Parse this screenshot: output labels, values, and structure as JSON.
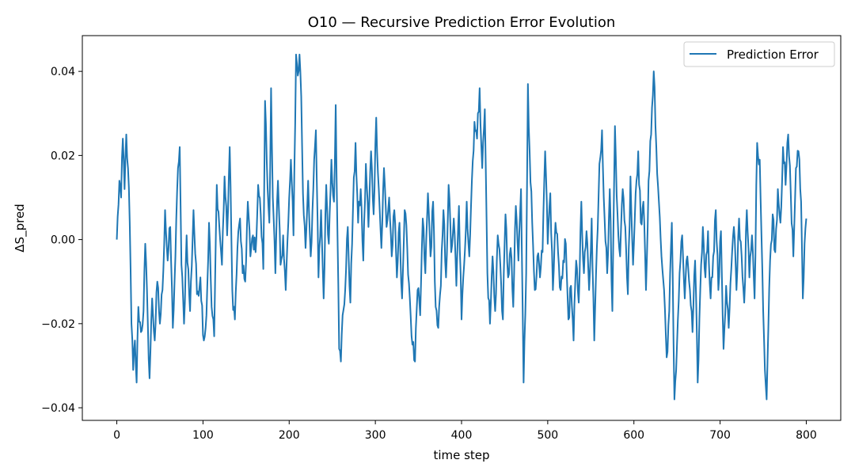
{
  "chart_data": {
    "type": "line",
    "title": "O10 — Recursive Prediction Error Evolution",
    "xlabel": "time step",
    "ylabel": "ΔS_pred",
    "xlim": [
      -40,
      840
    ],
    "ylim": [
      -0.043,
      0.0485
    ],
    "x_ticks": [
      0,
      100,
      200,
      300,
      400,
      500,
      600,
      700,
      800
    ],
    "x_tick_labels": [
      "0",
      "100",
      "200",
      "300",
      "400",
      "500",
      "600",
      "700",
      "800"
    ],
    "y_ticks": [
      -0.04,
      -0.02,
      0.0,
      0.02,
      0.04
    ],
    "y_tick_labels": [
      "−0.04",
      "−0.02",
      "0.00",
      "0.02",
      "0.04"
    ],
    "grid": false,
    "legend_position": "top-right",
    "series": [
      {
        "name": "Prediction Error",
        "color": "#1f77b4",
        "x_start": 0,
        "x_step": 1,
        "anchors": [
          [
            0,
            0.0
          ],
          [
            3,
            0.014
          ],
          [
            5,
            0.01
          ],
          [
            7,
            0.024
          ],
          [
            9,
            0.012
          ],
          [
            11,
            0.025
          ],
          [
            13,
            0.017
          ],
          [
            15,
            0.004
          ],
          [
            17,
            -0.02
          ],
          [
            19,
            -0.031
          ],
          [
            21,
            -0.024
          ],
          [
            23,
            -0.034
          ],
          [
            25,
            -0.016
          ],
          [
            28,
            -0.022
          ],
          [
            31,
            -0.017
          ],
          [
            33,
            -0.001
          ],
          [
            36,
            -0.02
          ],
          [
            38,
            -0.033
          ],
          [
            41,
            -0.014
          ],
          [
            44,
            -0.024
          ],
          [
            47,
            -0.01
          ],
          [
            50,
            -0.02
          ],
          [
            53,
            -0.012
          ],
          [
            56,
            0.007
          ],
          [
            59,
            -0.005
          ],
          [
            62,
            0.003
          ],
          [
            65,
            -0.021
          ],
          [
            68,
            -0.004
          ],
          [
            71,
            0.017
          ],
          [
            73,
            0.022
          ],
          [
            75,
            -0.006
          ],
          [
            78,
            -0.02
          ],
          [
            81,
            0.001
          ],
          [
            85,
            -0.017
          ],
          [
            89,
            0.007
          ],
          [
            93,
            -0.013
          ],
          [
            97,
            -0.009
          ],
          [
            101,
            -0.024
          ],
          [
            104,
            -0.018
          ],
          [
            107,
            0.004
          ],
          [
            110,
            -0.016
          ],
          [
            113,
            -0.023
          ],
          [
            116,
            0.013
          ],
          [
            119,
            0.003
          ],
          [
            122,
            -0.006
          ],
          [
            125,
            0.015
          ],
          [
            128,
            0.001
          ],
          [
            131,
            0.022
          ],
          [
            134,
            -0.012
          ],
          [
            137,
            -0.019
          ],
          [
            140,
            -0.002
          ],
          [
            143,
            0.005
          ],
          [
            146,
            -0.008
          ],
          [
            149,
            -0.01
          ],
          [
            152,
            0.009
          ],
          [
            155,
            -0.004
          ],
          [
            158,
            0.001
          ],
          [
            161,
            -0.003
          ],
          [
            164,
            0.013
          ],
          [
            167,
            0.006
          ],
          [
            170,
            -0.007
          ],
          [
            172,
            0.033
          ],
          [
            175,
            0.012
          ],
          [
            177,
            0.004
          ],
          [
            179,
            0.036
          ],
          [
            181,
            0.01
          ],
          [
            184,
            -0.008
          ],
          [
            187,
            0.014
          ],
          [
            190,
            -0.006
          ],
          [
            193,
            0.001
          ],
          [
            196,
            -0.012
          ],
          [
            199,
            0.004
          ],
          [
            202,
            0.019
          ],
          [
            205,
            0.001
          ],
          [
            208,
            0.044
          ],
          [
            210,
            0.039
          ],
          [
            212,
            0.044
          ],
          [
            214,
            0.034
          ],
          [
            216,
            0.011
          ],
          [
            219,
            -0.002
          ],
          [
            222,
            0.014
          ],
          [
            225,
            -0.004
          ],
          [
            228,
            0.012
          ],
          [
            231,
            0.026
          ],
          [
            234,
            -0.009
          ],
          [
            237,
            0.007
          ],
          [
            240,
            -0.014
          ],
          [
            243,
            0.013
          ],
          [
            246,
            -0.001
          ],
          [
            249,
            0.019
          ],
          [
            252,
            0.009
          ],
          [
            254,
            0.032
          ],
          [
            256,
            0.002
          ],
          [
            258,
            -0.026
          ],
          [
            260,
            -0.029
          ],
          [
            262,
            -0.018
          ],
          [
            265,
            -0.012
          ],
          [
            268,
            0.003
          ],
          [
            271,
            -0.015
          ],
          [
            274,
            0.007
          ],
          [
            277,
            0.023
          ],
          [
            280,
            0.004
          ],
          [
            283,
            0.012
          ],
          [
            286,
            -0.005
          ],
          [
            289,
            0.018
          ],
          [
            292,
            0.003
          ],
          [
            295,
            0.021
          ],
          [
            298,
            0.006
          ],
          [
            301,
            0.029
          ],
          [
            304,
            0.012
          ],
          [
            307,
            -0.002
          ],
          [
            310,
            0.017
          ],
          [
            313,
            0.003
          ],
          [
            316,
            0.01
          ],
          [
            319,
            -0.004
          ],
          [
            322,
            0.007
          ],
          [
            325,
            -0.009
          ],
          [
            328,
            0.004
          ],
          [
            331,
            -0.014
          ],
          [
            334,
            0.007
          ],
          [
            337,
            -0.002
          ],
          [
            340,
            -0.014
          ],
          [
            343,
            -0.025
          ],
          [
            346,
            -0.029
          ],
          [
            349,
            -0.012
          ],
          [
            352,
            -0.018
          ],
          [
            355,
            0.005
          ],
          [
            358,
            -0.008
          ],
          [
            361,
            0.011
          ],
          [
            364,
            -0.004
          ],
          [
            367,
            0.009
          ],
          [
            370,
            -0.016
          ],
          [
            373,
            -0.021
          ],
          [
            376,
            -0.011
          ],
          [
            379,
            0.007
          ],
          [
            382,
            -0.009
          ],
          [
            385,
            0.013
          ],
          [
            388,
            -0.003
          ],
          [
            391,
            0.005
          ],
          [
            394,
            -0.011
          ],
          [
            397,
            0.008
          ],
          [
            400,
            -0.019
          ],
          [
            403,
            -0.006
          ],
          [
            406,
            0.009
          ],
          [
            409,
            -0.004
          ],
          [
            412,
            0.014
          ],
          [
            415,
            0.028
          ],
          [
            418,
            0.024
          ],
          [
            421,
            0.036
          ],
          [
            424,
            0.017
          ],
          [
            427,
            0.031
          ],
          [
            430,
            -0.008
          ],
          [
            433,
            -0.02
          ],
          [
            436,
            -0.004
          ],
          [
            439,
            -0.017
          ],
          [
            442,
            0.001
          ],
          [
            445,
            -0.006
          ],
          [
            448,
            -0.019
          ],
          [
            451,
            0.006
          ],
          [
            454,
            -0.009
          ],
          [
            457,
            -0.002
          ],
          [
            460,
            -0.016
          ],
          [
            463,
            0.008
          ],
          [
            466,
            -0.005
          ],
          [
            469,
            0.012
          ],
          [
            472,
            -0.034
          ],
          [
            475,
            -0.008
          ],
          [
            477,
            0.037
          ],
          [
            479,
            0.021
          ],
          [
            482,
            0.004
          ],
          [
            485,
            -0.012
          ],
          [
            488,
            -0.004
          ],
          [
            491,
            -0.009
          ],
          [
            494,
            -0.003
          ],
          [
            497,
            0.021
          ],
          [
            500,
            -0.001
          ],
          [
            503,
            0.011
          ],
          [
            506,
            -0.012
          ],
          [
            509,
            0.004
          ],
          [
            512,
            -0.003
          ],
          [
            515,
            -0.012
          ],
          [
            518,
            -0.005
          ],
          [
            521,
            -0.001
          ],
          [
            524,
            -0.019
          ],
          [
            527,
            -0.011
          ],
          [
            530,
            -0.024
          ],
          [
            533,
            -0.005
          ],
          [
            536,
            -0.015
          ],
          [
            539,
            0.009
          ],
          [
            542,
            -0.008
          ],
          [
            545,
            0.002
          ],
          [
            548,
            -0.012
          ],
          [
            551,
            0.005
          ],
          [
            554,
            -0.024
          ],
          [
            557,
            -0.002
          ],
          [
            560,
            0.018
          ],
          [
            563,
            0.026
          ],
          [
            566,
            0.005
          ],
          [
            569,
            -0.008
          ],
          [
            572,
            0.012
          ],
          [
            575,
            -0.017
          ],
          [
            578,
            0.027
          ],
          [
            581,
            0.006
          ],
          [
            584,
            -0.004
          ],
          [
            587,
            0.012
          ],
          [
            590,
            0.003
          ],
          [
            593,
            -0.013
          ],
          [
            596,
            0.015
          ],
          [
            599,
            -0.006
          ],
          [
            602,
            0.011
          ],
          [
            605,
            0.021
          ],
          [
            608,
            0.004
          ],
          [
            611,
            0.009
          ],
          [
            614,
            -0.012
          ],
          [
            617,
            0.014
          ],
          [
            620,
            0.025
          ],
          [
            623,
            0.04
          ],
          [
            626,
            0.022
          ],
          [
            629,
            0.009
          ],
          [
            632,
            -0.004
          ],
          [
            635,
            -0.012
          ],
          [
            638,
            -0.028
          ],
          [
            641,
            -0.017
          ],
          [
            644,
            0.004
          ],
          [
            647,
            -0.038
          ],
          [
            650,
            -0.025
          ],
          [
            653,
            -0.008
          ],
          [
            656,
            0.001
          ],
          [
            659,
            -0.014
          ],
          [
            662,
            -0.004
          ],
          [
            665,
            -0.012
          ],
          [
            668,
            -0.022
          ],
          [
            671,
            -0.005
          ],
          [
            674,
            -0.034
          ],
          [
            677,
            -0.012
          ],
          [
            680,
            0.003
          ],
          [
            683,
            -0.009
          ],
          [
            686,
            0.002
          ],
          [
            689,
            -0.014
          ],
          [
            692,
            -0.004
          ],
          [
            695,
            0.007
          ],
          [
            698,
            -0.012
          ],
          [
            701,
            0.002
          ],
          [
            704,
            -0.026
          ],
          [
            707,
            -0.011
          ],
          [
            710,
            -0.021
          ],
          [
            713,
            -0.007
          ],
          [
            716,
            0.003
          ],
          [
            719,
            -0.012
          ],
          [
            722,
            0.005
          ],
          [
            725,
            -0.004
          ],
          [
            728,
            -0.015
          ],
          [
            731,
            0.007
          ],
          [
            734,
            -0.009
          ],
          [
            737,
            0.001
          ],
          [
            740,
            -0.014
          ],
          [
            743,
            0.023
          ],
          [
            746,
            0.019
          ],
          [
            749,
            -0.007
          ],
          [
            752,
            -0.031
          ],
          [
            754,
            -0.038
          ],
          [
            756,
            -0.021
          ],
          [
            758,
            -0.005
          ],
          [
            761,
            0.006
          ],
          [
            764,
            -0.003
          ],
          [
            767,
            0.012
          ],
          [
            770,
            0.004
          ],
          [
            773,
            0.022
          ],
          [
            776,
            0.013
          ],
          [
            779,
            0.025
          ],
          [
            782,
            0.011
          ],
          [
            785,
            -0.004
          ],
          [
            788,
            0.017
          ],
          [
            791,
            0.021
          ],
          [
            794,
            0.009
          ],
          [
            796,
            -0.014
          ],
          [
            798,
            -0.001
          ],
          [
            800,
            0.005
          ]
        ]
      }
    ]
  }
}
